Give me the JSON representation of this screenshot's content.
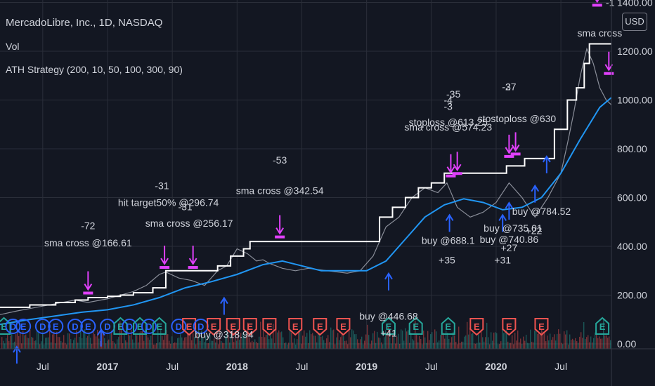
{
  "header": {
    "title": "MercadoLibre, Inc., 1D, NASDAQ",
    "volume_label": "Vol",
    "strategy_label": "ATH Strategy (200, 10, 50, 100, 300, 90)",
    "currency_button": "USD"
  },
  "colors": {
    "background": "#131722",
    "grid": "#2a2e39",
    "sma_line": "#2196f3",
    "ath_line": "#ffffff",
    "sell_marker": "#e040fb",
    "buy_marker": "#2962ff",
    "earnings_green": "#26a69a",
    "earnings_red": "#ef5350",
    "dividend_blue": "#2962ff",
    "axis_text": "#d1d4dc"
  },
  "chart_data": {
    "type": "line",
    "symbol": "MELI",
    "y_axis": {
      "ticks": [
        0,
        200,
        400,
        600,
        800,
        1000,
        1200,
        1400
      ],
      "tick_labels": [
        "0.00",
        "200.00",
        "400.00",
        "600.00",
        "800.00",
        "1000.00",
        "1200.00",
        "1400.00"
      ],
      "ylim": [
        -20,
        1410
      ]
    },
    "x_axis": {
      "tick_labels": [
        {
          "label": "Jul",
          "t": 2016.5,
          "bold": false
        },
        {
          "label": "2017",
          "t": 2017.0,
          "bold": true
        },
        {
          "label": "Jul",
          "t": 2017.5,
          "bold": false
        },
        {
          "label": "2018",
          "t": 2018.0,
          "bold": true
        },
        {
          "label": "Jul",
          "t": 2018.5,
          "bold": false
        },
        {
          "label": "2019",
          "t": 2019.0,
          "bold": true
        },
        {
          "label": "Jul",
          "t": 2019.5,
          "bold": false
        },
        {
          "label": "2020",
          "t": 2020.0,
          "bold": true
        },
        {
          "label": "Jul",
          "t": 2020.5,
          "bold": false
        }
      ],
      "xlim": [
        2016.17,
        2020.89
      ]
    },
    "series": [
      {
        "name": "Price",
        "x": [
          2016.17,
          2016.3,
          2016.45,
          2016.6,
          2016.75,
          2016.85,
          2017.0,
          2017.1,
          2017.2,
          2017.3,
          2017.4,
          2017.45,
          2017.55,
          2017.65,
          2017.75,
          2017.85,
          2017.92,
          2018.0,
          2018.08,
          2018.15,
          2018.2,
          2018.25,
          2018.35,
          2018.45,
          2018.55,
          2018.7,
          2018.85,
          2018.95,
          2019.05,
          2019.15,
          2019.25,
          2019.35,
          2019.45,
          2019.55,
          2019.62,
          2019.7,
          2019.8,
          2019.9,
          2020.0,
          2020.05,
          2020.1,
          2020.2,
          2020.3,
          2020.4,
          2020.5,
          2020.55,
          2020.6,
          2020.65,
          2020.7,
          2020.75,
          2020.8,
          2020.85,
          2020.89
        ],
        "values": [
          120,
          135,
          150,
          165,
          180,
          170,
          185,
          200,
          215,
          240,
          285,
          295,
          270,
          260,
          240,
          300,
          320,
          390,
          370,
          340,
          345,
          330,
          310,
          300,
          310,
          300,
          290,
          300,
          360,
          480,
          520,
          600,
          640,
          620,
          660,
          560,
          520,
          540,
          580,
          620,
          660,
          600,
          520,
          600,
          700,
          820,
          950,
          1100,
          1210,
          1150,
          1050,
          1000,
          980
        ]
      },
      {
        "name": "SMA",
        "x": [
          2016.17,
          2016.4,
          2016.6,
          2016.8,
          2017.0,
          2017.2,
          2017.4,
          2017.6,
          2017.8,
          2018.0,
          2018.2,
          2018.35,
          2018.5,
          2018.65,
          2018.8,
          2019.0,
          2019.15,
          2019.3,
          2019.45,
          2019.6,
          2019.75,
          2019.9,
          2020.05,
          2020.2,
          2020.35,
          2020.5,
          2020.65,
          2020.8,
          2020.89
        ],
        "values": [
          80,
          100,
          115,
          130,
          140,
          160,
          190,
          230,
          255,
          285,
          325,
          340,
          320,
          300,
          300,
          300,
          340,
          430,
          520,
          570,
          595,
          580,
          550,
          560,
          600,
          700,
          840,
          970,
          1010
        ]
      },
      {
        "name": "ATH",
        "x": [
          2016.17,
          2016.4,
          2016.6,
          2016.75,
          2016.85,
          2017.0,
          2017.1,
          2017.2,
          2017.35,
          2017.45,
          2017.8,
          2017.85,
          2017.95,
          2018.05,
          2018.1,
          2019.05,
          2019.1,
          2019.2,
          2019.3,
          2019.4,
          2019.5,
          2019.6,
          2019.75,
          2020.0,
          2020.08,
          2020.22,
          2020.35,
          2020.45,
          2020.55,
          2020.62,
          2020.68,
          2020.72,
          2020.89
        ],
        "values": [
          150,
          160,
          170,
          180,
          190,
          195,
          200,
          210,
          230,
          300,
          300,
          320,
          360,
          390,
          420,
          420,
          520,
          560,
          600,
          640,
          660,
          700,
          700,
          700,
          730,
          760,
          760,
          880,
          1000,
          1050,
          1150,
          1230,
          1230
        ],
        "step": true
      }
    ],
    "annotations": [
      {
        "text": "-72",
        "t": 2016.85,
        "v": 470,
        "kind": "label"
      },
      {
        "text": "sma cross @166.61",
        "t": 2016.85,
        "v": 400,
        "kind": "label"
      },
      {
        "text": "-31",
        "t": 2017.42,
        "v": 635,
        "kind": "label"
      },
      {
        "text": "hit target50% @296.74",
        "t": 2017.47,
        "v": 565,
        "kind": "label"
      },
      {
        "text": "-31",
        "t": 2017.6,
        "v": 548,
        "kind": "label"
      },
      {
        "text": "sma cross @256.17",
        "t": 2017.63,
        "v": 480,
        "kind": "label"
      },
      {
        "text": "-53",
        "t": 2018.33,
        "v": 740,
        "kind": "label"
      },
      {
        "text": "sma cross @342.54",
        "t": 2018.33,
        "v": 615,
        "kind": "label"
      },
      {
        "text": "buy @446.68",
        "t": 2019.17,
        "v": 100,
        "kind": "label"
      },
      {
        "text": "+41",
        "t": 2019.17,
        "v": 30,
        "kind": "label"
      },
      {
        "text": "buy @318.94",
        "t": 2017.9,
        "v": 25,
        "kind": "label"
      },
      {
        "text": "-3",
        "t": 2019.63,
        "v": 960,
        "kind": "label"
      },
      {
        "text": "-35",
        "t": 2019.67,
        "v": 1010,
        "kind": "label"
      },
      {
        "text": "-4",
        "t": 2019.63,
        "v": 985,
        "kind": "label"
      },
      {
        "text": "stoploss @613.25",
        "t": 2019.63,
        "v": 895,
        "kind": "label"
      },
      {
        "text": "sma cross @574.23",
        "t": 2019.63,
        "v": 875,
        "kind": "label"
      },
      {
        "text": "buy @688.1",
        "t": 2019.63,
        "v": 410,
        "kind": "label"
      },
      {
        "text": "+35",
        "t": 2019.62,
        "v": 330,
        "kind": "label"
      },
      {
        "text": "-3",
        "t": 2020.08,
        "v": 1040,
        "kind": "label"
      },
      {
        "text": "-27",
        "t": 2020.1,
        "v": 1040,
        "kind": "label"
      },
      {
        "text": "stostoploss @630",
        "t": 2020.16,
        "v": 910,
        "kind": "label"
      },
      {
        "text": "buy @784.52",
        "t": 2020.35,
        "v": 530,
        "kind": "label"
      },
      {
        "text": "+22",
        "t": 2020.29,
        "v": 450,
        "kind": "label"
      },
      {
        "text": "buy @735.01",
        "t": 2020.13,
        "v": 460,
        "kind": "label"
      },
      {
        "text": "buy @740.86",
        "t": 2020.1,
        "v": 415,
        "kind": "label"
      },
      {
        "text": "+27",
        "t": 2020.1,
        "v": 380,
        "kind": "label"
      },
      {
        "text": "+31",
        "t": 2020.05,
        "v": 330,
        "kind": "label"
      },
      {
        "text": "sma cross",
        "t": 2020.8,
        "v": 1260,
        "kind": "label"
      },
      {
        "text": "-1",
        "t": 2020.88,
        "v": 1385,
        "kind": "label"
      }
    ],
    "sell_markers": [
      {
        "t": 2016.85,
        "v": 200
      },
      {
        "t": 2017.44,
        "v": 305
      },
      {
        "t": 2017.66,
        "v": 305
      },
      {
        "t": 2018.33,
        "v": 430
      },
      {
        "t": 2019.65,
        "v": 680
      },
      {
        "t": 2019.7,
        "v": 690
      },
      {
        "t": 2020.1,
        "v": 760
      },
      {
        "t": 2020.15,
        "v": 770
      },
      {
        "t": 2020.78,
        "v": 1380
      },
      {
        "t": 2020.87,
        "v": 1100
      }
    ],
    "buy_markers": [
      {
        "t": 2016.3,
        "v": 0
      },
      {
        "t": 2016.95,
        "v": 70
      },
      {
        "t": 2017.9,
        "v": 200
      },
      {
        "t": 2019.17,
        "v": 300
      },
      {
        "t": 2019.64,
        "v": 540
      },
      {
        "t": 2020.05,
        "v": 540
      },
      {
        "t": 2020.1,
        "v": 590
      },
      {
        "t": 2020.3,
        "v": 660
      },
      {
        "t": 2020.39,
        "v": 780
      }
    ],
    "events": [
      {
        "label": "E",
        "kind": "green",
        "t": 2016.2
      },
      {
        "label": "D",
        "kind": "blue",
        "t": 2016.27
      },
      {
        "label": "E",
        "kind": "blue",
        "t": 2016.35
      },
      {
        "label": "D",
        "kind": "blue",
        "t": 2016.5
      },
      {
        "label": "E",
        "kind": "blue",
        "t": 2016.6
      },
      {
        "label": "D",
        "kind": "blue",
        "t": 2016.75
      },
      {
        "label": "E",
        "kind": "blue",
        "t": 2016.85
      },
      {
        "label": "D",
        "kind": "blue",
        "t": 2017.0
      },
      {
        "label": "E",
        "kind": "green",
        "t": 2017.1
      },
      {
        "label": "D",
        "kind": "blue",
        "t": 2017.17
      },
      {
        "label": "E",
        "kind": "green",
        "t": 2017.25
      },
      {
        "label": "D",
        "kind": "blue",
        "t": 2017.32
      },
      {
        "label": "E",
        "kind": "green",
        "t": 2017.4
      },
      {
        "label": "D",
        "kind": "blue",
        "t": 2017.55
      },
      {
        "label": "E",
        "kind": "red",
        "t": 2017.63
      },
      {
        "label": "D",
        "kind": "blue",
        "t": 2017.72
      },
      {
        "label": "E",
        "kind": "red",
        "t": 2017.82
      },
      {
        "label": "E",
        "kind": "red",
        "t": 2017.97
      },
      {
        "label": "E",
        "kind": "red",
        "t": 2018.1
      },
      {
        "label": "E",
        "kind": "red",
        "t": 2018.25
      },
      {
        "label": "E",
        "kind": "red",
        "t": 2018.45
      },
      {
        "label": "E",
        "kind": "red",
        "t": 2018.64
      },
      {
        "label": "E",
        "kind": "red",
        "t": 2018.82
      },
      {
        "label": "E",
        "kind": "green",
        "t": 2019.17
      },
      {
        "label": "E",
        "kind": "green",
        "t": 2019.38
      },
      {
        "label": "E",
        "kind": "green",
        "t": 2019.63
      },
      {
        "label": "E",
        "kind": "red",
        "t": 2019.85
      },
      {
        "label": "E",
        "kind": "red",
        "t": 2020.1
      },
      {
        "label": "E",
        "kind": "red",
        "t": 2020.35
      },
      {
        "label": "E",
        "kind": "green",
        "t": 2020.82
      }
    ]
  }
}
